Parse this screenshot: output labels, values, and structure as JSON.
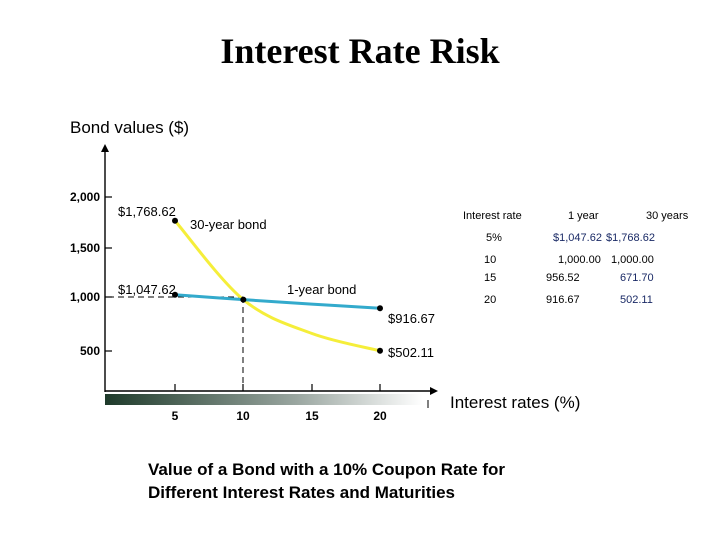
{
  "slide": {
    "title": "Interest Rate Risk",
    "caption_line1": "Value of a Bond with a 10% Coupon Rate for",
    "caption_line2": "Different Interest Rates and Maturities"
  },
  "chart_data": {
    "type": "line",
    "ylabel": "Bond values ($)",
    "xlabel": "Interest rates (%)",
    "x": [
      5,
      10,
      15,
      20
    ],
    "xticks": [
      "5",
      "10",
      "15",
      "20"
    ],
    "yticks": [
      "2,000",
      "1,500",
      "1,000",
      "500"
    ],
    "ytick_values": [
      2000,
      1500,
      1000,
      500
    ],
    "series": [
      {
        "name": "30-year bond",
        "values": [
          1768.62,
          1000.0,
          671.7,
          502.11
        ],
        "color": "#f5ee3a"
      },
      {
        "name": "1-year bond",
        "values": [
          1047.62,
          1000.0,
          956.52,
          916.67
        ],
        "color": "#33aacc"
      }
    ],
    "annotations": {
      "a30_start": "$1,768.62",
      "a1_start": "$1,047.62",
      "a1_end": "$916.67",
      "a30_end": "$502.11"
    },
    "table": {
      "headers": [
        "Interest rate",
        "1 year",
        "30 years"
      ],
      "rows": [
        [
          "5%",
          "$1,047.62",
          "$1,768.62"
        ],
        [
          "10",
          "1,000.00",
          "1,000.00"
        ],
        [
          "15",
          "956.52",
          "671.70"
        ],
        [
          "20",
          "916.67",
          "502.11"
        ]
      ]
    }
  }
}
